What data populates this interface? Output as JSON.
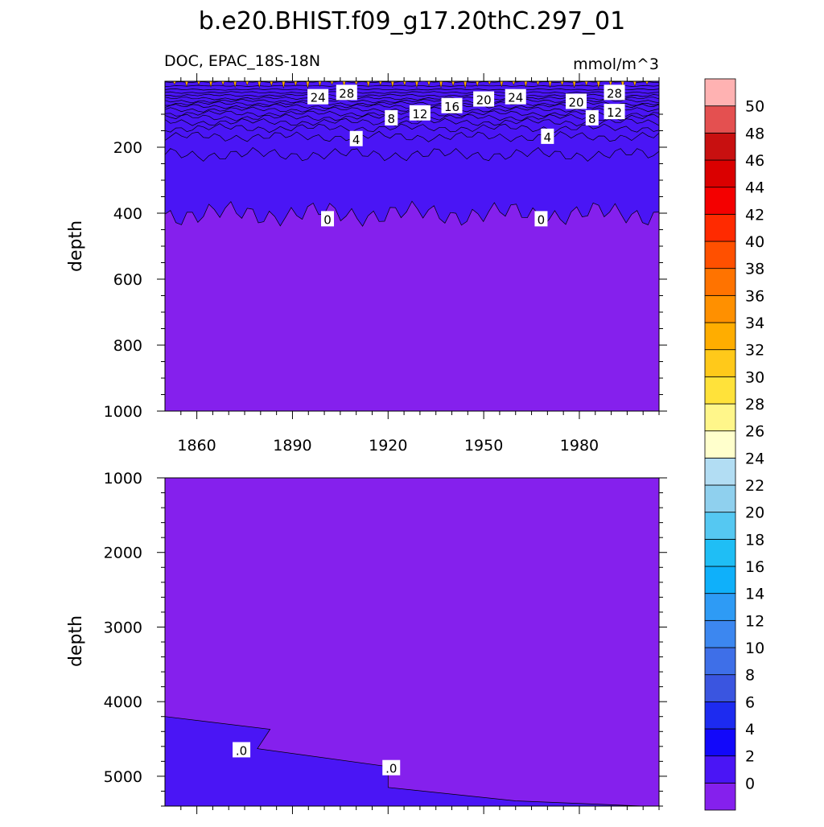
{
  "chart_data": {
    "type": "heatmap",
    "title": "b.e20.BHIST.f09_g17.20thC.297_01",
    "variable_label": "DOC, EPAC_18S-18N",
    "units": "mmol/m^3",
    "colorbar": {
      "levels": [
        0,
        2,
        4,
        6,
        8,
        10,
        12,
        14,
        16,
        18,
        20,
        22,
        24,
        26,
        28,
        30,
        32,
        34,
        36,
        38,
        40,
        42,
        44,
        46,
        48,
        50
      ],
      "colors": [
        "#8520ED",
        "#4A15F5",
        "#1208FA",
        "#1D2BF0",
        "#3A55E0",
        "#3E6FE8",
        "#3C87F0",
        "#2E9BF5",
        "#0FB0FA",
        "#1FBEF5",
        "#55C8F2",
        "#8FD0EE",
        "#B2DDF3",
        "#FFFFCC",
        "#FFF68A",
        "#FFE23A",
        "#FFC91A",
        "#FFAD00",
        "#FF9000",
        "#FF7300",
        "#FF5000",
        "#FF2A00",
        "#F40000",
        "#DA0000",
        "#C81010",
        "#E45050",
        "#FFB2B2"
      ]
    },
    "panels": [
      {
        "name": "upper",
        "ylabel": "depth",
        "yticks": [
          200,
          400,
          600,
          800,
          1000
        ],
        "ylim": [
          0,
          1000
        ],
        "xticks": [
          1860,
          1890,
          1920,
          1950,
          1980
        ],
        "xlim": [
          1850,
          2005
        ],
        "contour_labels": [
          {
            "text": "24",
            "x": 1898,
            "y": 48
          },
          {
            "text": "28",
            "x": 1907,
            "y": 35
          },
          {
            "text": "20",
            "x": 1950,
            "y": 55
          },
          {
            "text": "24",
            "x": 1960,
            "y": 48
          },
          {
            "text": "20",
            "x": 1979,
            "y": 62
          },
          {
            "text": "28",
            "x": 1991,
            "y": 35
          },
          {
            "text": "16",
            "x": 1940,
            "y": 75
          },
          {
            "text": "12",
            "x": 1930,
            "y": 97
          },
          {
            "text": "8",
            "x": 1921,
            "y": 112
          },
          {
            "text": "12",
            "x": 1991,
            "y": 93
          },
          {
            "text": "8",
            "x": 1984,
            "y": 112
          },
          {
            "text": "4",
            "x": 1910,
            "y": 175
          },
          {
            "text": "4",
            "x": 1970,
            "y": 168
          },
          {
            "text": "0",
            "x": 1901,
            "y": 418
          },
          {
            "text": "0",
            "x": 1968,
            "y": 418
          }
        ]
      },
      {
        "name": "lower",
        "ylabel": "depth",
        "yticks": [
          1000,
          2000,
          3000,
          4000,
          5000
        ],
        "ylim": [
          1000,
          5400
        ],
        "xlim": [
          1850,
          2005
        ],
        "contour_labels": [
          {
            "text": ".0",
            "x": 1874,
            "y": 4650
          },
          {
            "text": ".0",
            "x": 1921,
            "y": 4890
          }
        ]
      }
    ]
  }
}
